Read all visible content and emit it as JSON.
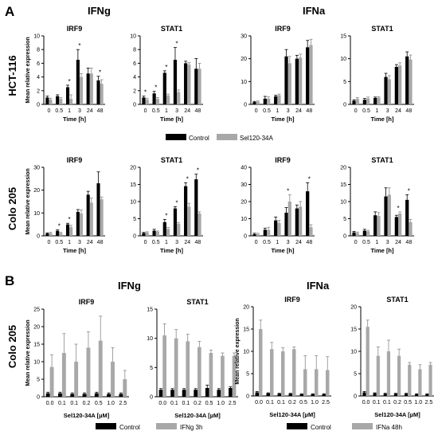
{
  "panels": [
    {
      "letter": "A",
      "groups": [
        "IFNg",
        "IFNa"
      ],
      "rows": [
        "HCT-116",
        "Colo 205"
      ],
      "legend": [
        "Control",
        "Sel120-34A"
      ]
    },
    {
      "letter": "B",
      "groups": [
        "IFNg",
        "IFNa"
      ],
      "rows": [
        "Colo 205"
      ],
      "legend_left": [
        "Control",
        "IFNg 3h"
      ],
      "legend_right": [
        "Control",
        "IFNa 48h"
      ]
    }
  ],
  "colors": {
    "control": "#000000",
    "treated": "#a8a8a8"
  },
  "chart_data": [
    {
      "type": "bar",
      "title": "IRF9",
      "group": "IFNg",
      "cell_line": "HCT-116",
      "xlabel": "Time [h]",
      "ylabel": "Mean relative expression",
      "ylim": [
        0,
        10
      ],
      "yticks": [
        0,
        2,
        4,
        6,
        8,
        10
      ],
      "categories": [
        "0",
        "0.5",
        "1",
        "3",
        "24",
        "48"
      ],
      "series": [
        {
          "name": "Control",
          "values": [
            1.0,
            1.2,
            2.5,
            6.5,
            4.5,
            3.5
          ],
          "err": [
            0.2,
            0.2,
            0.3,
            1.5,
            0.8,
            0.6
          ]
        },
        {
          "name": "Sel120-34A",
          "values": [
            0.7,
            0.8,
            0.8,
            4.0,
            4.5,
            3.0
          ],
          "err": [
            0.2,
            0.2,
            0.6,
            0.5,
            0.8,
            0.6
          ]
        }
      ],
      "stars": [
        2,
        3,
        5
      ]
    },
    {
      "type": "bar",
      "title": "STAT1",
      "group": "IFNg",
      "cell_line": "HCT-116",
      "xlabel": "Time [h]",
      "ylabel": "",
      "ylim": [
        0,
        10
      ],
      "yticks": [
        0,
        2,
        4,
        6,
        8,
        10
      ],
      "categories": [
        "0",
        "0.5",
        "1",
        "3",
        "24",
        "48"
      ],
      "series": [
        {
          "name": "Control",
          "values": [
            1.0,
            1.6,
            4.6,
            6.5,
            6.0,
            5.2
          ],
          "err": [
            0.2,
            0.3,
            0.3,
            1.8,
            0.3,
            1.5
          ]
        },
        {
          "name": "Sel120-34A",
          "values": [
            0.7,
            0.8,
            1.3,
            1.8,
            5.8,
            5.2
          ],
          "err": [
            0.2,
            0.2,
            0.2,
            0.3,
            0.3,
            0.8
          ]
        }
      ],
      "stars": [
        0,
        1,
        2,
        3
      ]
    },
    {
      "type": "bar",
      "title": "IRF9",
      "group": "IFNa",
      "cell_line": "HCT-116",
      "xlabel": "Time [h]",
      "ylabel": "",
      "ylim": [
        0,
        30
      ],
      "yticks": [
        0,
        10,
        20,
        30
      ],
      "categories": [
        "0",
        "0.5",
        "1",
        "3",
        "24",
        "48"
      ],
      "series": [
        {
          "name": "Control",
          "values": [
            1.0,
            2.5,
            3.5,
            21.0,
            20.0,
            25.0
          ],
          "err": [
            0.3,
            1.0,
            0.5,
            3.0,
            1.5,
            3.0
          ]
        },
        {
          "name": "Sel120-34A",
          "values": [
            1.2,
            2.5,
            4.0,
            18.0,
            20.5,
            26.0
          ],
          "err": [
            0.3,
            0.8,
            0.5,
            3.0,
            1.5,
            2.5
          ]
        }
      ],
      "stars": []
    },
    {
      "type": "bar",
      "title": "STAT1",
      "group": "IFNa",
      "cell_line": "HCT-116",
      "xlabel": "Time [h]",
      "ylabel": "",
      "ylim": [
        0,
        15
      ],
      "yticks": [
        0,
        5,
        10,
        15
      ],
      "categories": [
        "0",
        "0.5",
        "1",
        "3",
        "24",
        "48"
      ],
      "series": [
        {
          "name": "Control",
          "values": [
            0.8,
            1.0,
            1.4,
            6.0,
            8.2,
            10.5
          ],
          "err": [
            0.2,
            0.3,
            0.2,
            0.8,
            0.5,
            1.0
          ]
        },
        {
          "name": "Sel120-34A",
          "values": [
            1.2,
            1.3,
            1.5,
            5.5,
            8.5,
            9.8
          ],
          "err": [
            0.3,
            0.3,
            0.2,
            0.8,
            0.6,
            1.0
          ]
        }
      ],
      "stars": []
    },
    {
      "type": "bar",
      "title": "IRF9",
      "group": "IFNg",
      "cell_line": "Colo 205",
      "xlabel": "Time [h]",
      "ylabel": "Mean relative expression",
      "ylim": [
        0,
        30
      ],
      "yticks": [
        0,
        10,
        20,
        30
      ],
      "categories": [
        "0",
        "0.5",
        "1",
        "3",
        "24",
        "48"
      ],
      "series": [
        {
          "name": "Control",
          "values": [
            1.0,
            2.2,
            5.0,
            10.5,
            18.0,
            23.0
          ],
          "err": [
            0.3,
            0.4,
            0.5,
            1.0,
            1.5,
            5.0
          ]
        },
        {
          "name": "Sel120-34A",
          "values": [
            1.2,
            1.2,
            3.8,
            9.8,
            14.5,
            16.0
          ],
          "err": [
            0.3,
            0.3,
            0.8,
            1.5,
            2.0,
            1.0
          ]
        }
      ],
      "stars": [
        1,
        2
      ]
    },
    {
      "type": "bar",
      "title": "STAT1",
      "group": "IFNg",
      "cell_line": "Colo 205",
      "xlabel": "Time [h]",
      "ylabel": "",
      "ylim": [
        0,
        20
      ],
      "yticks": [
        0,
        5,
        10,
        15,
        20
      ],
      "categories": [
        "0",
        "0.5",
        "1",
        "3",
        "24",
        "48"
      ],
      "series": [
        {
          "name": "Control",
          "values": [
            0.8,
            1.5,
            4.0,
            8.0,
            14.5,
            16.5
          ],
          "err": [
            0.2,
            0.4,
            0.8,
            0.5,
            1.0,
            1.5
          ]
        },
        {
          "name": "Sel120-34A",
          "values": [
            1.0,
            1.2,
            2.0,
            3.5,
            8.5,
            6.5
          ],
          "err": [
            0.2,
            0.2,
            0.4,
            0.4,
            1.0,
            0.5
          ]
        }
      ],
      "stars": [
        2,
        3,
        4,
        5
      ]
    },
    {
      "type": "bar",
      "title": "IRF9",
      "group": "IFNa",
      "cell_line": "Colo 205",
      "xlabel": "Time [h]",
      "ylabel": "",
      "ylim": [
        0,
        40
      ],
      "yticks": [
        0,
        10,
        20,
        30,
        40
      ],
      "categories": [
        "0",
        "0.5",
        "1",
        "3",
        "24",
        "48"
      ],
      "series": [
        {
          "name": "Control",
          "values": [
            1.0,
            3.5,
            9.0,
            13.5,
            16.0,
            26.0
          ],
          "err": [
            0.5,
            1.0,
            2.0,
            3.0,
            2.0,
            5.0
          ]
        },
        {
          "name": "Sel120-34A",
          "values": [
            1.0,
            3.5,
            7.5,
            20.0,
            17.0,
            5.0
          ],
          "err": [
            0.5,
            1.5,
            1.5,
            4.0,
            3.0,
            1.5
          ]
        }
      ],
      "stars": [
        3,
        5
      ]
    },
    {
      "type": "bar",
      "title": "STAT1",
      "group": "IFNa",
      "cell_line": "Colo 205",
      "xlabel": "Time [h]",
      "ylabel": "",
      "ylim": [
        0,
        20
      ],
      "yticks": [
        0,
        5,
        10,
        15,
        20
      ],
      "categories": [
        "0",
        "0.5",
        "1",
        "3",
        "24",
        "48"
      ],
      "series": [
        {
          "name": "Control",
          "values": [
            1.0,
            1.5,
            6.0,
            11.5,
            5.5,
            10.5
          ],
          "err": [
            0.3,
            0.4,
            1.0,
            2.5,
            0.5,
            1.5
          ]
        },
        {
          "name": "Sel120-34A",
          "values": [
            0.8,
            1.3,
            5.8,
            12.0,
            6.5,
            4.0
          ],
          "err": [
            0.3,
            0.3,
            1.0,
            2.0,
            0.5,
            0.8
          ]
        }
      ],
      "stars": [
        4,
        5
      ]
    },
    {
      "type": "bar",
      "title": "IRF9",
      "group": "IFNg",
      "cell_line": "Colo 205",
      "xlabel": "Sel120-34A [µM]",
      "ylabel": "Mean relative expression",
      "ylim": [
        0,
        25
      ],
      "yticks": [
        0,
        5,
        10,
        15,
        20,
        25
      ],
      "categories": [
        "0.0",
        "0.1",
        "0.1",
        "0.2",
        "0.5",
        "1.0",
        "2.5"
      ],
      "series": [
        {
          "name": "Control",
          "values": [
            1.0,
            1.0,
            0.8,
            0.8,
            1.0,
            0.8,
            0.8
          ],
          "err": [
            0.3,
            0.3,
            0.3,
            0.3,
            0.3,
            0.3,
            0.3
          ]
        },
        {
          "name": "IFNg 3h",
          "values": [
            8.5,
            12.5,
            10.0,
            14.0,
            16.0,
            10.0,
            5.0
          ],
          "err": [
            3.5,
            5.5,
            5.0,
            4.5,
            7.0,
            4.0,
            2.5
          ]
        }
      ],
      "stars": []
    },
    {
      "type": "bar",
      "title": "STAT1",
      "group": "IFNg",
      "cell_line": "Colo 205",
      "xlabel": "Sel120-34A [µM]",
      "ylabel": "",
      "ylim": [
        0,
        15
      ],
      "yticks": [
        0,
        5,
        10,
        15
      ],
      "categories": [
        "0.0",
        "0.1",
        "0.1",
        "0.2",
        "0.5",
        "1.0",
        "2.5"
      ],
      "series": [
        {
          "name": "Control",
          "values": [
            1.2,
            1.2,
            1.2,
            1.2,
            1.5,
            1.2,
            1.5
          ],
          "err": [
            0.2,
            0.2,
            0.2,
            0.2,
            0.5,
            0.2,
            0.2
          ]
        },
        {
          "name": "IFNg 3h",
          "values": [
            10.5,
            10.0,
            9.5,
            8.5,
            7.5,
            7.0,
            7.0
          ],
          "err": [
            2.0,
            1.5,
            1.2,
            1.0,
            0.5,
            0.5,
            0.5
          ]
        }
      ],
      "stars": []
    },
    {
      "type": "bar",
      "title": "IRF9",
      "group": "IFNa",
      "cell_line": "Colo 205",
      "xlabel": "Sel120-34A [µM]",
      "ylabel": "Mean relative expression",
      "ylim": [
        0,
        20
      ],
      "yticks": [
        0,
        5,
        10,
        15,
        20
      ],
      "categories": [
        "0.0",
        "0.1",
        "0.1",
        "0.2",
        "0.5",
        "1.0",
        "2.5"
      ],
      "series": [
        {
          "name": "Control",
          "values": [
            0.8,
            0.6,
            0.5,
            0.5,
            0.4,
            0.4,
            0.4
          ],
          "err": [
            0.2,
            0.1,
            0.1,
            0.1,
            0.1,
            0.1,
            0.1
          ]
        },
        {
          "name": "IFNa 48h",
          "values": [
            15.0,
            10.5,
            10.0,
            10.5,
            6.0,
            6.0,
            5.8
          ],
          "err": [
            2.0,
            1.5,
            0.8,
            0.5,
            3.0,
            3.0,
            3.0
          ]
        }
      ],
      "stars": []
    },
    {
      "type": "bar",
      "title": "STAT1",
      "group": "IFNa",
      "cell_line": "Colo 205",
      "xlabel": "Sel120-34A [µM]",
      "ylabel": "",
      "ylim": [
        0,
        20
      ],
      "yticks": [
        0,
        5,
        10,
        15,
        20
      ],
      "categories": [
        "0.0",
        "0.1",
        "0.1",
        "0.2",
        "0.5",
        "1.0",
        "2.5"
      ],
      "series": [
        {
          "name": "Control",
          "values": [
            0.8,
            0.6,
            0.5,
            0.5,
            0.5,
            0.4,
            0.4
          ],
          "err": [
            0.2,
            0.1,
            0.1,
            0.1,
            0.1,
            0.1,
            0.1
          ]
        },
        {
          "name": "IFNa 48h",
          "values": [
            15.5,
            9.0,
            10.0,
            9.0,
            7.0,
            6.0,
            7.0
          ],
          "err": [
            1.5,
            2.0,
            2.5,
            1.5,
            0.5,
            1.0,
            0.5
          ]
        }
      ],
      "stars": []
    }
  ]
}
